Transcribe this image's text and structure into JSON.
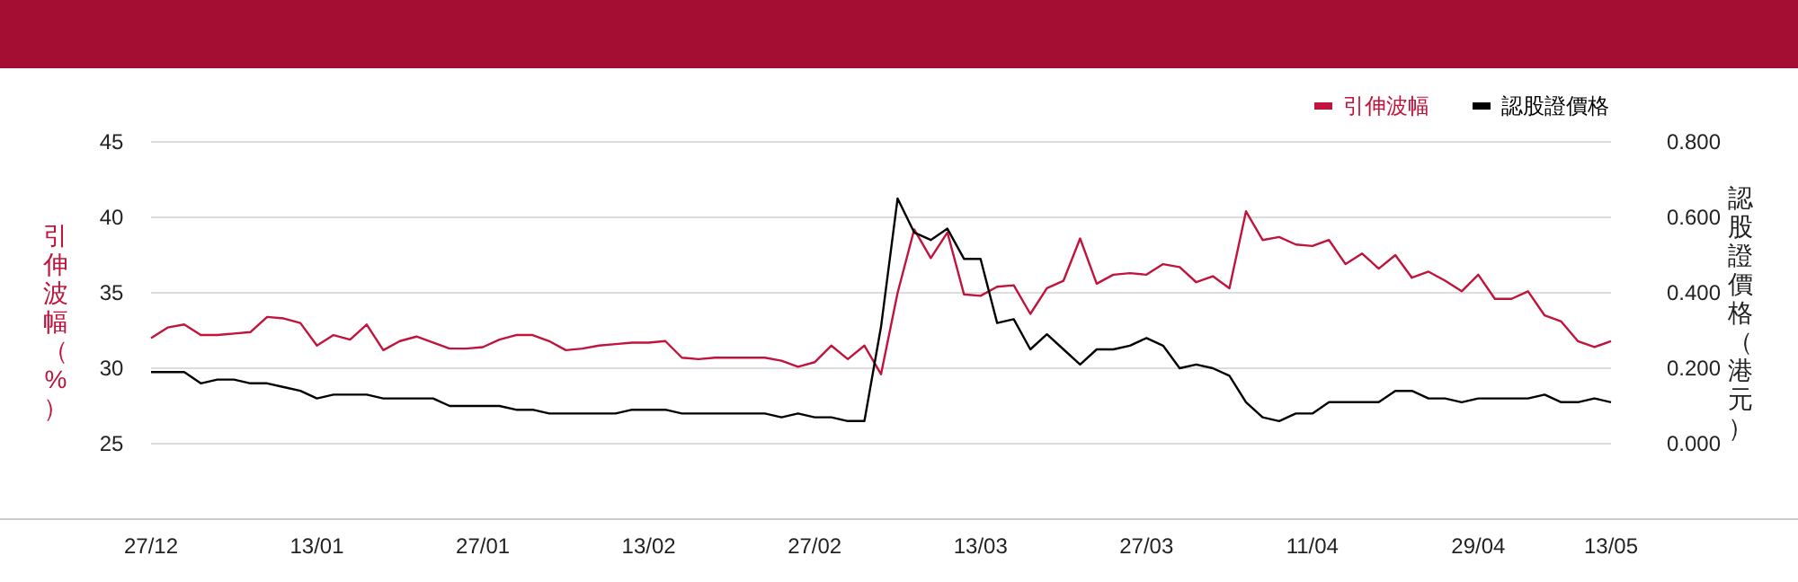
{
  "chart_data": {
    "type": "line",
    "categories": [
      "27/12",
      null,
      null,
      null,
      null,
      null,
      null,
      null,
      null,
      null,
      "13/01",
      null,
      null,
      null,
      null,
      null,
      null,
      null,
      null,
      null,
      "27/01",
      null,
      null,
      null,
      null,
      null,
      null,
      null,
      null,
      null,
      "13/02",
      null,
      null,
      null,
      null,
      null,
      null,
      null,
      null,
      null,
      "27/02",
      null,
      null,
      null,
      null,
      null,
      null,
      null,
      null,
      null,
      "13/03",
      null,
      null,
      null,
      null,
      null,
      null,
      null,
      null,
      null,
      "27/03",
      null,
      null,
      null,
      null,
      null,
      null,
      null,
      null,
      null,
      "11/04",
      null,
      null,
      null,
      null,
      null,
      null,
      null,
      null,
      null,
      "29/04",
      null,
      null,
      null,
      null,
      null,
      null,
      null,
      "13/05"
    ],
    "series": [
      {
        "name": "引伸波幅",
        "color": "#c0143c",
        "values": [
          32.0,
          32.7,
          32.9,
          32.2,
          32.2,
          32.3,
          32.4,
          33.4,
          33.3,
          33.0,
          31.5,
          32.2,
          31.9,
          32.9,
          31.2,
          31.8,
          32.1,
          31.7,
          31.3,
          31.3,
          31.4,
          31.9,
          32.2,
          32.2,
          31.8,
          31.2,
          31.3,
          31.5,
          31.6,
          31.7,
          31.7,
          31.8,
          30.7,
          30.6,
          30.7,
          30.7,
          30.7,
          30.7,
          30.5,
          30.1,
          30.4,
          31.5,
          30.6,
          31.5,
          29.6,
          35.0,
          39.2,
          37.3,
          39.0,
          34.9,
          34.8,
          35.4,
          35.5,
          33.6,
          35.3,
          35.8,
          38.6,
          35.6,
          36.2,
          36.3,
          36.2,
          36.9,
          36.7,
          35.7,
          36.1,
          35.3,
          40.4,
          38.5,
          38.7,
          38.2,
          38.1,
          38.5,
          36.9,
          37.6,
          36.6,
          37.5,
          36.0,
          36.4,
          35.8,
          35.1,
          36.2,
          34.6,
          34.6,
          35.1,
          33.5,
          33.1,
          31.8,
          31.4,
          31.8
        ]
      },
      {
        "name": "認股證價格",
        "color": "#000000",
        "axis": "y2",
        "values": [
          0.19,
          0.19,
          0.19,
          0.16,
          0.17,
          0.17,
          0.16,
          0.16,
          0.15,
          0.14,
          0.12,
          0.13,
          0.13,
          0.13,
          0.12,
          0.12,
          0.12,
          0.12,
          0.1,
          0.1,
          0.1,
          0.1,
          0.09,
          0.09,
          0.08,
          0.08,
          0.08,
          0.08,
          0.08,
          0.09,
          0.09,
          0.09,
          0.08,
          0.08,
          0.08,
          0.08,
          0.08,
          0.08,
          0.07,
          0.08,
          0.07,
          0.07,
          0.06,
          0.06,
          0.31,
          0.65,
          0.56,
          0.54,
          0.57,
          0.49,
          0.49,
          0.32,
          0.33,
          0.25,
          0.29,
          0.25,
          0.21,
          0.25,
          0.25,
          0.26,
          0.28,
          0.26,
          0.2,
          0.21,
          0.2,
          0.18,
          0.11,
          0.07,
          0.06,
          0.08,
          0.08,
          0.11,
          0.11,
          0.11,
          0.11,
          0.14,
          0.14,
          0.12,
          0.12,
          0.11,
          0.12,
          0.12,
          0.12,
          0.12,
          0.13,
          0.11,
          0.11,
          0.12,
          0.11
        ]
      }
    ],
    "ylabel": "引伸波幅（%）",
    "y2label": "認股證價格（港元）",
    "ylim": [
      20,
      45
    ],
    "yticks": [
      25,
      30,
      35,
      40,
      45
    ],
    "y2lim": [
      -0.2,
      0.8
    ],
    "y2ticks": [
      {
        "value": 0,
        "label": "0.000"
      },
      {
        "value": 0.2,
        "label": "0.200"
      },
      {
        "value": 0.4,
        "label": "0.400"
      },
      {
        "value": 0.6,
        "label": "0.600"
      },
      {
        "value": 0.8,
        "label": "0.800"
      }
    ],
    "grid": "y",
    "legend": "top right",
    "marker": "none",
    "line_style": "solid"
  }
}
